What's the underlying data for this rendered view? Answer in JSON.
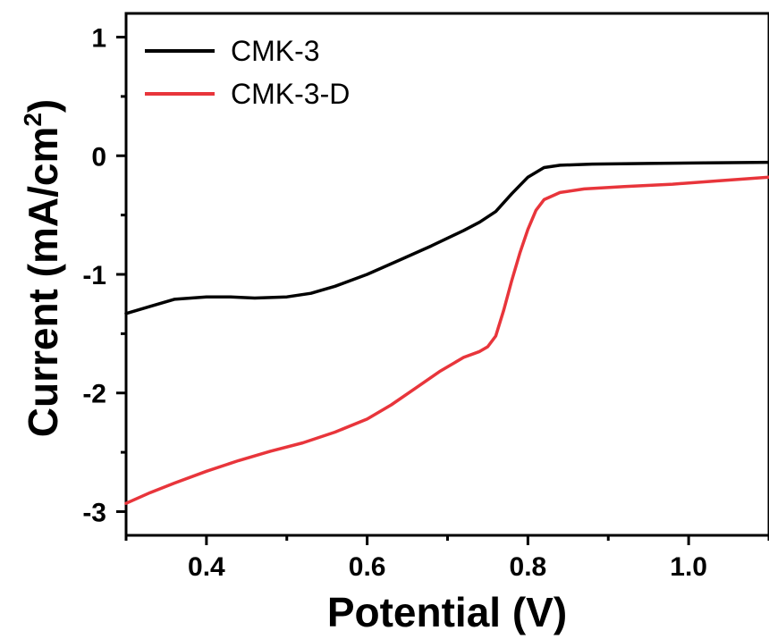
{
  "chart_data": {
    "type": "line",
    "xlabel": "Potential (V)",
    "ylabel_main": "Current (mA/cm",
    "ylabel_sup": "2",
    "ylabel_end": ")",
    "xlim": [
      0.3,
      1.1
    ],
    "ylim": [
      -3.2,
      1.2
    ],
    "x_ticks": [
      0.4,
      0.6,
      0.8,
      1.0
    ],
    "x_tick_labels": [
      "0.4",
      "0.6",
      "0.8",
      "1.0"
    ],
    "y_ticks": [
      1,
      0,
      -1,
      -2,
      -3
    ],
    "y_tick_labels": [
      "1",
      "0",
      "-1",
      "-2",
      "-3"
    ],
    "legend_position": "top-left",
    "grid": false,
    "series": [
      {
        "name": "CMK-3",
        "color": "#000000",
        "points": [
          [
            0.3,
            -1.33
          ],
          [
            0.33,
            -1.27
          ],
          [
            0.36,
            -1.21
          ],
          [
            0.4,
            -1.19
          ],
          [
            0.43,
            -1.19
          ],
          [
            0.46,
            -1.2
          ],
          [
            0.5,
            -1.19
          ],
          [
            0.53,
            -1.16
          ],
          [
            0.56,
            -1.1
          ],
          [
            0.6,
            -1.0
          ],
          [
            0.64,
            -0.88
          ],
          [
            0.68,
            -0.76
          ],
          [
            0.72,
            -0.63
          ],
          [
            0.74,
            -0.56
          ],
          [
            0.76,
            -0.47
          ],
          [
            0.78,
            -0.32
          ],
          [
            0.8,
            -0.18
          ],
          [
            0.82,
            -0.1
          ],
          [
            0.84,
            -0.08
          ],
          [
            0.88,
            -0.07
          ],
          [
            0.95,
            -0.065
          ],
          [
            1.02,
            -0.06
          ],
          [
            1.1,
            -0.055
          ]
        ]
      },
      {
        "name": "CMK-3-D",
        "color": "#e8353b",
        "points": [
          [
            0.3,
            -2.93
          ],
          [
            0.33,
            -2.84
          ],
          [
            0.36,
            -2.76
          ],
          [
            0.4,
            -2.66
          ],
          [
            0.44,
            -2.57
          ],
          [
            0.48,
            -2.49
          ],
          [
            0.52,
            -2.42
          ],
          [
            0.56,
            -2.33
          ],
          [
            0.6,
            -2.22
          ],
          [
            0.63,
            -2.1
          ],
          [
            0.66,
            -1.96
          ],
          [
            0.69,
            -1.82
          ],
          [
            0.72,
            -1.7
          ],
          [
            0.74,
            -1.65
          ],
          [
            0.75,
            -1.61
          ],
          [
            0.76,
            -1.52
          ],
          [
            0.77,
            -1.3
          ],
          [
            0.78,
            -1.05
          ],
          [
            0.79,
            -0.82
          ],
          [
            0.8,
            -0.62
          ],
          [
            0.81,
            -0.46
          ],
          [
            0.82,
            -0.37
          ],
          [
            0.84,
            -0.31
          ],
          [
            0.87,
            -0.28
          ],
          [
            0.92,
            -0.26
          ],
          [
            0.98,
            -0.24
          ],
          [
            1.04,
            -0.21
          ],
          [
            1.1,
            -0.18
          ]
        ]
      }
    ]
  }
}
